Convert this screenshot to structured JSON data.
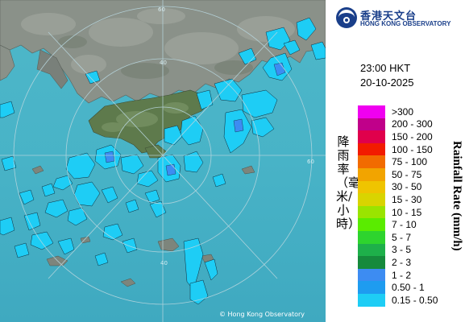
{
  "header": {
    "org_name_cn": "香港天文台",
    "org_name_en": "HONG KONG OBSERVATORY",
    "time": "23:00 HKT",
    "date": "20-10-2025"
  },
  "map": {
    "credit": "© Hong Kong Observatory",
    "range_ring_labels": [
      "40",
      "40",
      "60",
      "60"
    ]
  },
  "legend": {
    "title_cn": "降雨率（毫米/小時）",
    "title_en": "Rainfall Rate (mm/h)",
    "entries": [
      {
        "label": ">300",
        "color": "#f000f0"
      },
      {
        "label": "200 - 300",
        "color": "#c0008a"
      },
      {
        "label": "150 - 200",
        "color": "#e0004c"
      },
      {
        "label": "100 - 150",
        "color": "#f21b00"
      },
      {
        "label": "75 - 100",
        "color": "#f26b00"
      },
      {
        "label": "50 - 75",
        "color": "#f2a400"
      },
      {
        "label": "30 - 50",
        "color": "#efc400"
      },
      {
        "label": "15 - 30",
        "color": "#d9d400"
      },
      {
        "label": "10 - 15",
        "color": "#9ae400"
      },
      {
        "label": "7 - 10",
        "color": "#5aec00"
      },
      {
        "label": "5 - 7",
        "color": "#2ed42e"
      },
      {
        "label": "3 - 5",
        "color": "#1eb04a"
      },
      {
        "label": "2 - 3",
        "color": "#168a3c"
      },
      {
        "label": "1 - 2",
        "color": "#3d8cf2"
      },
      {
        "label": "0.50 - 1",
        "color": "#1e9cf0"
      },
      {
        "label": "0.15 - 0.50",
        "color": "#1ecdf5"
      }
    ]
  }
}
